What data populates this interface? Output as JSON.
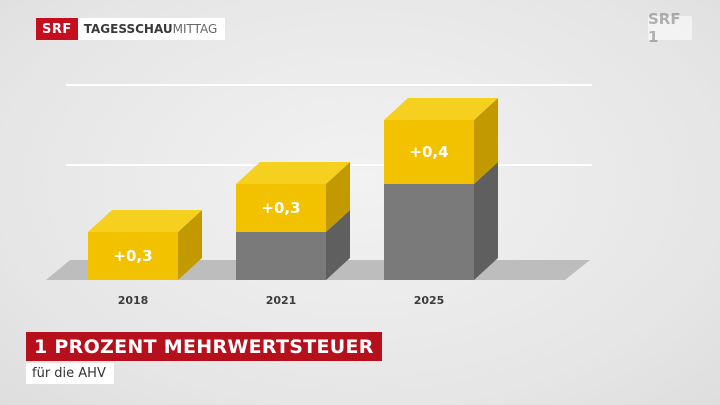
{
  "header": {
    "logo_text": "SRF",
    "show_strong": "TAGESSCHAU",
    "show_light": "MITTAG",
    "channel_bug": "SRF 1"
  },
  "colors": {
    "yellow_front": "#f2c200",
    "yellow_side": "#c29a00",
    "yellow_top": "#f5d01e",
    "grey_front": "#7a7a7a",
    "grey_side": "#5f5f5f",
    "platform": "#bdbdbd",
    "brand_red": "#c50f1f"
  },
  "chart_data": {
    "type": "bar",
    "stacked": true,
    "categories": [
      "2018",
      "2021",
      "2025"
    ],
    "series": [
      {
        "values": [
          0,
          0.3,
          0.6
        ]
      },
      {
        "values": [
          0.3,
          0.3,
          0.4
        ]
      }
    ],
    "data_labels": [
      "+0,3",
      "+0,3",
      "+0,4"
    ],
    "ylim": [
      0,
      1.25
    ],
    "grid": true,
    "gridlines": [
      0.75,
      1.25
    ]
  },
  "lower_third": {
    "title": "1 PROZENT MEHRWERTSTEUER",
    "subtitle": "für die AHV"
  }
}
